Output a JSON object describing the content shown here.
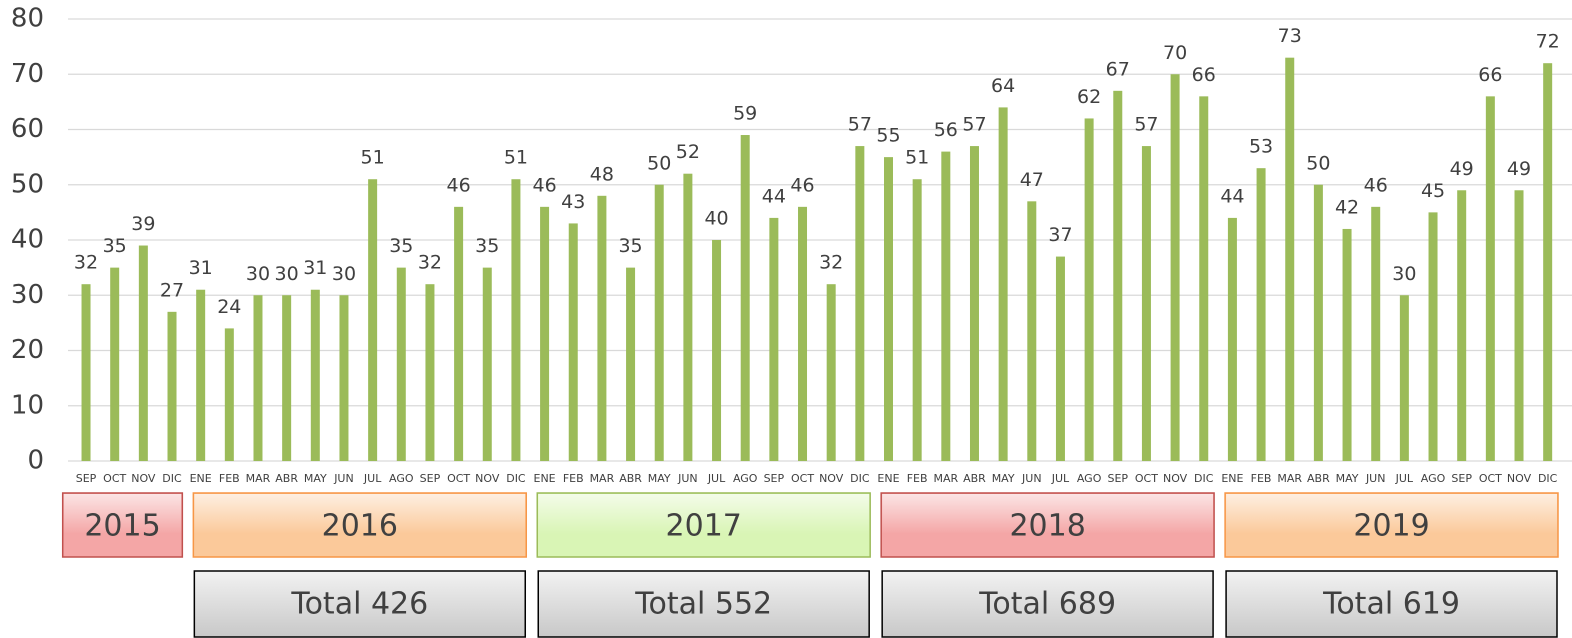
{
  "chart_data": {
    "type": "bar",
    "categories": [
      "SEP",
      "OCT",
      "NOV",
      "DIC",
      "ENE",
      "FEB",
      "MAR",
      "ABR",
      "MAY",
      "JUN",
      "JUL",
      "AGO",
      "SEP",
      "OCT",
      "NOV",
      "DIC",
      "ENE",
      "FEB",
      "MAR",
      "ABR",
      "MAY",
      "JUN",
      "JUL",
      "AGO",
      "SEP",
      "OCT",
      "NOV",
      "DIC",
      "ENE",
      "FEB",
      "MAR",
      "ABR",
      "MAY",
      "JUN",
      "JUL",
      "AGO",
      "SEP",
      "OCT",
      "NOV",
      "DIC",
      "ENE",
      "FEB",
      "MAR",
      "ABR",
      "MAY",
      "JUN",
      "JUL",
      "AGO",
      "SEP",
      "OCT",
      "NOV",
      "DIC"
    ],
    "values": [
      32,
      35,
      39,
      27,
      31,
      24,
      30,
      30,
      31,
      30,
      51,
      35,
      32,
      46,
      35,
      51,
      46,
      43,
      48,
      35,
      50,
      52,
      40,
      59,
      44,
      46,
      32,
      57,
      55,
      51,
      56,
      57,
      64,
      47,
      37,
      62,
      67,
      57,
      70,
      66,
      44,
      53,
      73,
      50,
      42,
      46,
      30,
      45,
      49,
      66,
      49,
      72
    ],
    "color": "#9bbb59",
    "ylim": [
      0,
      80
    ],
    "yticks": [
      0,
      10,
      20,
      30,
      40,
      50,
      60,
      70,
      80
    ],
    "grid": true,
    "groups": [
      {
        "year": "2015",
        "color": "#f4a6a6"
      },
      {
        "year": "2016",
        "color": "#fbc99a",
        "total": "Total 426"
      },
      {
        "year": "2017",
        "color": "#d9f5b5",
        "total": "Total 552"
      },
      {
        "year": "2018",
        "color": "#f4a6a6",
        "total": "Total 689"
      },
      {
        "year": "2019",
        "color": "#fbc99a",
        "total": "Total 619"
      }
    ]
  }
}
